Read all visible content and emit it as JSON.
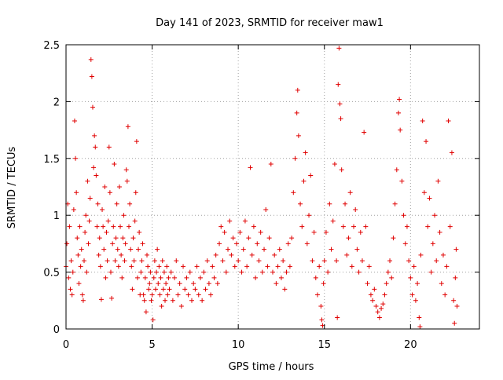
{
  "chart_data": {
    "type": "scatter",
    "title": "Day 141 of 2023, SRMTID for receiver maw1",
    "xlabel": "GPS time / hours",
    "ylabel": "SRMTID / TECUs",
    "xlim": [
      0,
      24
    ],
    "ylim": [
      0,
      2.5
    ],
    "xticks": [
      0,
      5,
      10,
      15,
      20
    ],
    "yticks": [
      0,
      0.5,
      1,
      1.5,
      2,
      2.5
    ],
    "xtick_labels": [
      "0",
      "5",
      "10",
      "15",
      "20"
    ],
    "ytick_labels": [
      "0",
      "0.5",
      "1",
      "1.5",
      "2",
      "2.5"
    ],
    "grid": true,
    "marker": "+",
    "color": "#e00000",
    "series": [
      {
        "name": "maw1",
        "points": [
          [
            0.0,
            0.55
          ],
          [
            0.05,
            0.75
          ],
          [
            0.1,
            1.1
          ],
          [
            0.15,
            0.45
          ],
          [
            0.2,
            0.9
          ],
          [
            0.25,
            0.35
          ],
          [
            0.3,
            0.6
          ],
          [
            0.35,
            0.3
          ],
          [
            0.4,
            0.5
          ],
          [
            0.45,
            1.05
          ],
          [
            0.5,
            1.83
          ],
          [
            0.55,
            1.5
          ],
          [
            0.6,
            1.2
          ],
          [
            0.65,
            0.8
          ],
          [
            0.7,
            0.65
          ],
          [
            0.75,
            0.4
          ],
          [
            0.8,
            0.9
          ],
          [
            0.85,
            0.55
          ],
          [
            0.9,
            0.7
          ],
          [
            0.95,
            0.3
          ],
          [
            1.0,
            0.25
          ],
          [
            1.05,
            0.6
          ],
          [
            1.1,
            0.85
          ],
          [
            1.15,
            1.0
          ],
          [
            1.2,
            0.5
          ],
          [
            1.25,
            1.3
          ],
          [
            1.3,
            0.75
          ],
          [
            1.35,
            0.95
          ],
          [
            1.4,
            1.15
          ],
          [
            1.45,
            2.37
          ],
          [
            1.5,
            2.22
          ],
          [
            1.55,
            1.95
          ],
          [
            1.6,
            1.42
          ],
          [
            1.65,
            1.7
          ],
          [
            1.7,
            1.6
          ],
          [
            1.75,
            1.35
          ],
          [
            1.8,
            0.9
          ],
          [
            1.85,
            1.1
          ],
          [
            1.9,
            0.65
          ],
          [
            1.95,
            0.8
          ],
          [
            2.0,
            0.55
          ],
          [
            2.05,
            0.26
          ],
          [
            2.1,
            1.05
          ],
          [
            2.15,
            0.9
          ],
          [
            2.2,
            0.7
          ],
          [
            2.25,
            1.25
          ],
          [
            2.3,
            0.45
          ],
          [
            2.35,
            0.85
          ],
          [
            2.4,
            0.6
          ],
          [
            2.45,
            0.95
          ],
          [
            2.5,
            1.6
          ],
          [
            2.55,
            1.2
          ],
          [
            2.6,
            0.5
          ],
          [
            2.65,
            0.27
          ],
          [
            2.7,
            0.75
          ],
          [
            2.75,
            0.9
          ],
          [
            2.8,
            1.45
          ],
          [
            2.85,
            0.6
          ],
          [
            2.9,
            0.8
          ],
          [
            2.95,
            1.1
          ],
          [
            3.0,
            0.7
          ],
          [
            3.05,
            0.55
          ],
          [
            3.1,
            1.25
          ],
          [
            3.15,
            0.9
          ],
          [
            3.2,
            0.65
          ],
          [
            3.25,
            0.45
          ],
          [
            3.3,
            0.8
          ],
          [
            3.35,
            1.0
          ],
          [
            3.4,
            0.6
          ],
          [
            3.45,
            0.75
          ],
          [
            3.5,
            1.4
          ],
          [
            3.55,
            1.3
          ],
          [
            3.6,
            1.78
          ],
          [
            3.65,
            0.9
          ],
          [
            3.7,
            1.1
          ],
          [
            3.75,
            0.7
          ],
          [
            3.8,
            0.55
          ],
          [
            3.85,
            0.35
          ],
          [
            3.9,
            0.8
          ],
          [
            3.95,
            0.6
          ],
          [
            4.0,
            0.95
          ],
          [
            4.05,
            1.2
          ],
          [
            4.1,
            1.65
          ],
          [
            4.15,
            0.45
          ],
          [
            4.2,
            0.7
          ],
          [
            4.25,
            0.85
          ],
          [
            4.3,
            0.3
          ],
          [
            4.35,
            0.5
          ],
          [
            4.4,
            0.6
          ],
          [
            4.45,
            0.75
          ],
          [
            4.5,
            0.3
          ],
          [
            4.55,
            0.25
          ],
          [
            4.6,
            0.45
          ],
          [
            4.65,
            0.15
          ],
          [
            4.7,
            0.65
          ],
          [
            4.75,
            0.55
          ],
          [
            4.8,
            0.35
          ],
          [
            4.85,
            0.4
          ],
          [
            4.9,
            0.5
          ],
          [
            4.95,
            0.25
          ],
          [
            5.0,
            0.3
          ],
          [
            5.05,
            0.08
          ],
          [
            5.1,
            0.45
          ],
          [
            5.15,
            0.6
          ],
          [
            5.2,
            0.35
          ],
          [
            5.25,
            0.5
          ],
          [
            5.3,
            0.7
          ],
          [
            5.35,
            0.4
          ],
          [
            5.4,
            0.55
          ],
          [
            5.45,
            0.3
          ],
          [
            5.5,
            0.45
          ],
          [
            5.55,
            0.2
          ],
          [
            5.6,
            0.6
          ],
          [
            5.65,
            0.35
          ],
          [
            5.7,
            0.5
          ],
          [
            5.75,
            0.25
          ],
          [
            5.8,
            0.4
          ],
          [
            5.85,
            0.55
          ],
          [
            5.9,
            0.3
          ],
          [
            5.95,
            0.45
          ],
          [
            6.0,
            0.35
          ],
          [
            6.1,
            0.5
          ],
          [
            6.2,
            0.25
          ],
          [
            6.3,
            0.45
          ],
          [
            6.4,
            0.6
          ],
          [
            6.5,
            0.3
          ],
          [
            6.6,
            0.4
          ],
          [
            6.7,
            0.2
          ],
          [
            6.8,
            0.55
          ],
          [
            6.9,
            0.35
          ],
          [
            7.0,
            0.45
          ],
          [
            7.1,
            0.3
          ],
          [
            7.2,
            0.5
          ],
          [
            7.3,
            0.25
          ],
          [
            7.4,
            0.4
          ],
          [
            7.5,
            0.35
          ],
          [
            7.6,
            0.55
          ],
          [
            7.7,
            0.3
          ],
          [
            7.8,
            0.45
          ],
          [
            7.9,
            0.25
          ],
          [
            8.0,
            0.5
          ],
          [
            8.1,
            0.35
          ],
          [
            8.2,
            0.6
          ],
          [
            8.3,
            0.4
          ],
          [
            8.4,
            0.3
          ],
          [
            8.5,
            0.55
          ],
          [
            8.6,
            0.45
          ],
          [
            8.7,
            0.65
          ],
          [
            8.8,
            0.4
          ],
          [
            8.9,
            0.75
          ],
          [
            9.0,
            0.9
          ],
          [
            9.1,
            0.6
          ],
          [
            9.2,
            0.85
          ],
          [
            9.3,
            0.5
          ],
          [
            9.4,
            0.7
          ],
          [
            9.5,
            0.95
          ],
          [
            9.6,
            0.65
          ],
          [
            9.7,
            0.8
          ],
          [
            9.8,
            0.55
          ],
          [
            9.9,
            0.75
          ],
          [
            10.0,
            0.6
          ],
          [
            10.1,
            0.85
          ],
          [
            10.2,
            0.5
          ],
          [
            10.3,
            0.7
          ],
          [
            10.4,
            0.95
          ],
          [
            10.5,
            0.55
          ],
          [
            10.6,
            0.8
          ],
          [
            10.7,
            1.42
          ],
          [
            10.8,
            0.65
          ],
          [
            10.9,
            0.9
          ],
          [
            11.0,
            0.45
          ],
          [
            11.1,
            0.75
          ],
          [
            11.2,
            0.6
          ],
          [
            11.3,
            0.85
          ],
          [
            11.4,
            0.5
          ],
          [
            11.5,
            0.7
          ],
          [
            11.6,
            1.05
          ],
          [
            11.7,
            0.55
          ],
          [
            11.8,
            0.8
          ],
          [
            11.9,
            1.45
          ],
          [
            12.0,
            0.5
          ],
          [
            12.1,
            0.65
          ],
          [
            12.2,
            0.4
          ],
          [
            12.3,
            0.55
          ],
          [
            12.4,
            0.7
          ],
          [
            12.5,
            0.45
          ],
          [
            12.6,
            0.6
          ],
          [
            12.7,
            0.35
          ],
          [
            12.8,
            0.5
          ],
          [
            12.9,
            0.75
          ],
          [
            13.0,
            0.55
          ],
          [
            13.1,
            0.8
          ],
          [
            13.2,
            1.2
          ],
          [
            13.3,
            1.5
          ],
          [
            13.4,
            1.9
          ],
          [
            13.45,
            2.1
          ],
          [
            13.5,
            1.7
          ],
          [
            13.6,
            1.1
          ],
          [
            13.7,
            0.9
          ],
          [
            13.8,
            1.3
          ],
          [
            13.9,
            1.55
          ],
          [
            14.0,
            0.75
          ],
          [
            14.1,
            1.0
          ],
          [
            14.2,
            1.35
          ],
          [
            14.3,
            0.6
          ],
          [
            14.4,
            0.85
          ],
          [
            14.5,
            0.45
          ],
          [
            14.6,
            0.3
          ],
          [
            14.7,
            0.55
          ],
          [
            14.8,
            0.2
          ],
          [
            14.85,
            0.08
          ],
          [
            14.9,
            0.03
          ],
          [
            14.95,
            0.4
          ],
          [
            15.0,
            0.6
          ],
          [
            15.1,
            0.85
          ],
          [
            15.2,
            0.5
          ],
          [
            15.3,
            1.1
          ],
          [
            15.4,
            0.7
          ],
          [
            15.5,
            0.95
          ],
          [
            15.6,
            1.45
          ],
          [
            15.7,
            0.6
          ],
          [
            15.75,
            0.1
          ],
          [
            15.8,
            2.15
          ],
          [
            15.85,
            2.47
          ],
          [
            15.9,
            1.98
          ],
          [
            15.95,
            1.85
          ],
          [
            16.0,
            1.4
          ],
          [
            16.1,
            0.9
          ],
          [
            16.2,
            1.1
          ],
          [
            16.3,
            0.65
          ],
          [
            16.4,
            0.8
          ],
          [
            16.5,
            1.2
          ],
          [
            16.6,
            0.55
          ],
          [
            16.7,
            0.9
          ],
          [
            16.8,
            1.05
          ],
          [
            16.9,
            0.7
          ],
          [
            17.0,
            0.5
          ],
          [
            17.1,
            0.85
          ],
          [
            17.2,
            0.6
          ],
          [
            17.3,
            1.73
          ],
          [
            17.4,
            0.9
          ],
          [
            17.5,
            0.4
          ],
          [
            17.6,
            0.55
          ],
          [
            17.7,
            0.3
          ],
          [
            17.8,
            0.25
          ],
          [
            17.9,
            0.35
          ],
          [
            18.0,
            0.2
          ],
          [
            18.1,
            0.15
          ],
          [
            18.2,
            0.1
          ],
          [
            18.3,
            0.18
          ],
          [
            18.4,
            0.22
          ],
          [
            18.5,
            0.3
          ],
          [
            18.6,
            0.4
          ],
          [
            18.7,
            0.5
          ],
          [
            18.8,
            0.6
          ],
          [
            18.9,
            0.45
          ],
          [
            19.0,
            0.8
          ],
          [
            19.1,
            1.1
          ],
          [
            19.2,
            1.4
          ],
          [
            19.3,
            1.9
          ],
          [
            19.35,
            2.02
          ],
          [
            19.4,
            1.75
          ],
          [
            19.5,
            1.3
          ],
          [
            19.6,
            1.0
          ],
          [
            19.7,
            0.75
          ],
          [
            19.8,
            0.9
          ],
          [
            19.9,
            0.6
          ],
          [
            20.0,
            0.45
          ],
          [
            20.1,
            0.3
          ],
          [
            20.2,
            0.55
          ],
          [
            20.3,
            0.25
          ],
          [
            20.4,
            0.4
          ],
          [
            20.5,
            0.1
          ],
          [
            20.55,
            0.02
          ],
          [
            20.6,
            0.65
          ],
          [
            20.7,
            1.83
          ],
          [
            20.8,
            1.2
          ],
          [
            20.9,
            1.65
          ],
          [
            21.0,
            0.9
          ],
          [
            21.1,
            1.15
          ],
          [
            21.2,
            0.5
          ],
          [
            21.3,
            0.75
          ],
          [
            21.4,
            1.0
          ],
          [
            21.5,
            0.6
          ],
          [
            21.6,
            1.3
          ],
          [
            21.7,
            0.85
          ],
          [
            21.8,
            0.4
          ],
          [
            21.9,
            0.65
          ],
          [
            22.0,
            0.3
          ],
          [
            22.1,
            0.55
          ],
          [
            22.2,
            1.83
          ],
          [
            22.3,
            0.9
          ],
          [
            22.4,
            1.55
          ],
          [
            22.5,
            0.25
          ],
          [
            22.55,
            0.05
          ],
          [
            22.6,
            0.45
          ],
          [
            22.65,
            0.7
          ],
          [
            22.7,
            0.2
          ]
        ]
      }
    ]
  }
}
